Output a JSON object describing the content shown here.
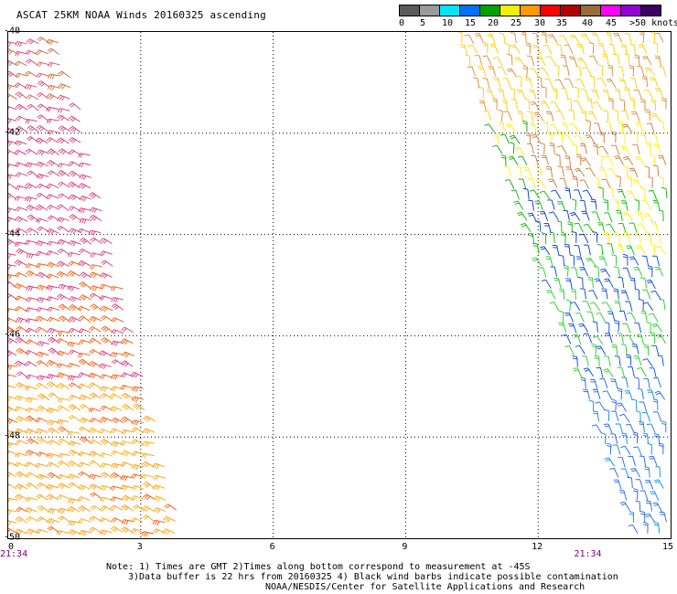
{
  "header": {
    "title": "ASCAT 25KM NOAA Winds 20160325 ascending"
  },
  "colorbar": {
    "labels": [
      "0",
      "5",
      "10",
      "15",
      "20",
      "25",
      "30",
      "35",
      "40",
      "45",
      ">50 knots"
    ],
    "colors": [
      "#5a5a5a",
      "#9a9a9a",
      "#00e5ff",
      "#0070ff",
      "#00a000",
      "#f0f000",
      "#ff9900",
      "#ff0000",
      "#b40000",
      "#9a6b3a",
      "#ff00ff",
      "#9400d3",
      "#3a0060"
    ]
  },
  "map": {
    "y_ticks": [
      "-40",
      "-42",
      "-44",
      "-46",
      "-48",
      "-50"
    ],
    "x_ticks": [
      "0",
      "3",
      "6",
      "9",
      "12",
      "15"
    ],
    "x_range": [
      0,
      15
    ],
    "y_range": [
      -50,
      -40
    ],
    "times": [
      {
        "label": "21:34",
        "lon": 0
      },
      {
        "label": "21:34",
        "lon": 13
      }
    ],
    "swaths": [
      {
        "name": "west",
        "top": [
          -0.1,
          1.2
        ],
        "bottom": [
          -0.1,
          4.0
        ]
      },
      {
        "name": "east",
        "top": [
          10.2,
          15.0
        ],
        "bottom": [
          14.3,
          15.0
        ]
      }
    ]
  },
  "notes": {
    "line1": "Note: 1) Times are GMT 2)Times along bottom correspond to measurement at -45S",
    "line2": "3)Data buffer is 22 hrs from 20160325 4) Black wind barbs indicate possible contamination",
    "line3": "NOAA/NESDIS/Center for Satellite Applications and Research"
  }
}
